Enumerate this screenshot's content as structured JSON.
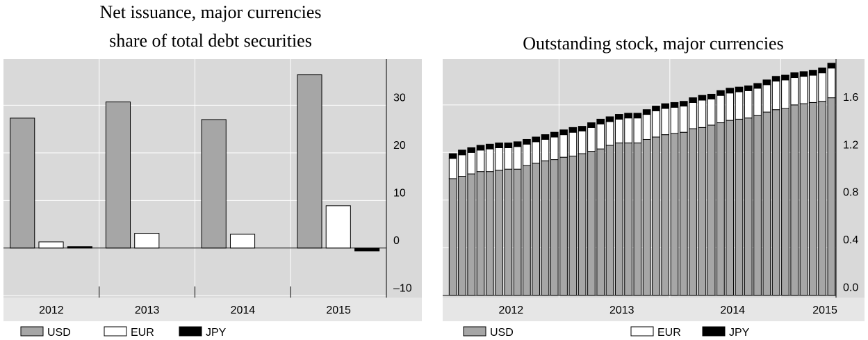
{
  "chart_data": [
    {
      "type": "bar",
      "title": "Net issuance, major currencies",
      "subtitle": "share of total debt securities",
      "categories": [
        "2012",
        "2013",
        "2014",
        "2015"
      ],
      "series": [
        {
          "name": "USD",
          "color": "#a6a6a6",
          "values": [
            27.3,
            30.7,
            27.0,
            36.4
          ]
        },
        {
          "name": "EUR",
          "color": "#ffffff",
          "values": [
            1.3,
            3.1,
            2.9,
            8.9
          ]
        },
        {
          "name": "JPY",
          "color": "#000000",
          "values": [
            0.3,
            0,
            0,
            -0.6
          ]
        }
      ],
      "ylim": [
        -10.4,
        39.7
      ],
      "yticks": [
        {
          "value": -10,
          "label": "–10"
        },
        0,
        10,
        20,
        30
      ],
      "grid": true,
      "y_axis_side": "right",
      "legend": "bottom"
    },
    {
      "type": "stacked_bar",
      "title": "Outstanding stock, major currencies",
      "categories": [
        null,
        null,
        null,
        null,
        null,
        null,
        "2012",
        null,
        null,
        null,
        null,
        null,
        null,
        null,
        null,
        null,
        null,
        null,
        "2013",
        null,
        null,
        null,
        null,
        null,
        null,
        null,
        null,
        null,
        null,
        null,
        "2014",
        null,
        null,
        null,
        null,
        null,
        null,
        null,
        null,
        null,
        "2015",
        null
      ],
      "series": [
        {
          "name": "USD",
          "color": "#a6a6a6",
          "values": [
            0.98,
            1.0,
            1.02,
            1.04,
            1.04,
            1.05,
            1.06,
            1.06,
            1.09,
            1.11,
            1.13,
            1.14,
            1.16,
            1.17,
            1.19,
            1.21,
            1.23,
            1.26,
            1.28,
            1.28,
            1.28,
            1.31,
            1.33,
            1.35,
            1.36,
            1.37,
            1.4,
            1.41,
            1.43,
            1.45,
            1.47,
            1.48,
            1.49,
            1.51,
            1.54,
            1.56,
            1.57,
            1.6,
            1.61,
            1.62,
            1.63,
            1.66
          ]
        },
        {
          "name": "EUR",
          "color": "#ffffff",
          "values": [
            0.17,
            0.18,
            0.18,
            0.18,
            0.19,
            0.19,
            0.18,
            0.19,
            0.18,
            0.18,
            0.18,
            0.19,
            0.19,
            0.2,
            0.19,
            0.2,
            0.21,
            0.2,
            0.2,
            0.21,
            0.21,
            0.21,
            0.22,
            0.22,
            0.22,
            0.22,
            0.22,
            0.23,
            0.22,
            0.23,
            0.23,
            0.23,
            0.23,
            0.23,
            0.23,
            0.24,
            0.24,
            0.23,
            0.23,
            0.23,
            0.24,
            0.25
          ]
        },
        {
          "name": "JPY",
          "color": "#000000",
          "values": [
            0.04,
            0.04,
            0.04,
            0.04,
            0.04,
            0.04,
            0.04,
            0.04,
            0.04,
            0.04,
            0.04,
            0.04,
            0.04,
            0.04,
            0.04,
            0.04,
            0.04,
            0.04,
            0.04,
            0.04,
            0.04,
            0.04,
            0.04,
            0.04,
            0.04,
            0.04,
            0.04,
            0.04,
            0.04,
            0.04,
            0.04,
            0.04,
            0.04,
            0.04,
            0.04,
            0.04,
            0.04,
            0.04,
            0.04,
            0.04,
            0.04,
            0.04
          ]
        }
      ],
      "ylim": [
        -0.02,
        1.985
      ],
      "yticks": [
        {
          "value": 0,
          "label": "0.0"
        },
        0.4,
        0.8,
        1.2,
        1.6
      ],
      "grid": true,
      "y_axis_side": "right",
      "legend": "bottom"
    }
  ]
}
